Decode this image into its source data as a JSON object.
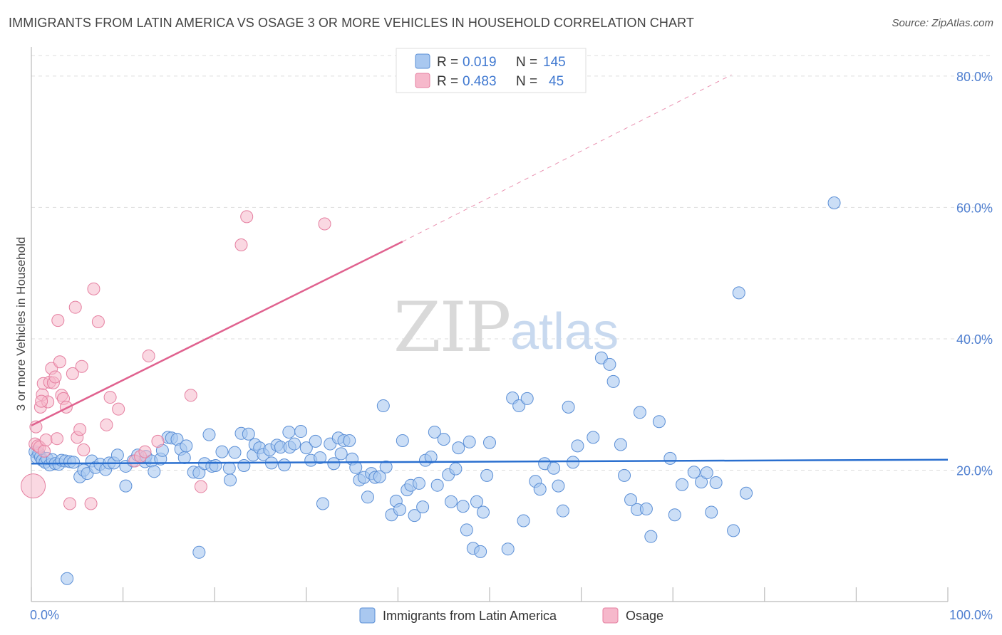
{
  "header": {
    "title": "IMMIGRANTS FROM LATIN AMERICA VS OSAGE 3 OR MORE VEHICLES IN HOUSEHOLD CORRELATION CHART",
    "source": "Source: ZipAtlas.com"
  },
  "watermark": {
    "zip": "ZIP",
    "atlas": "atlas"
  },
  "legend": {
    "rows": [
      {
        "r_label": "R =",
        "r_value": "0.019",
        "n_label": "N =",
        "n_value": "145",
        "color": "#a9c8f0"
      },
      {
        "r_label": "R =",
        "r_value": "0.483",
        "n_label": "N =",
        "n_value": "45",
        "color": "#f6b8cb"
      }
    ]
  },
  "bottom_legend": [
    {
      "label": "Immigrants from Latin America",
      "color": "#a9c8f0"
    },
    {
      "label": "Osage",
      "color": "#f6b8cb"
    }
  ],
  "colors": {
    "blue_fill": "#a9c8f0",
    "blue_stroke": "#5b8fd6",
    "blue_line": "#2a6fcf",
    "pink_fill": "#f6b8cb",
    "pink_stroke": "#e57fa0",
    "pink_line": "#e0628f",
    "grid": "#dddddd",
    "axis_label": "#4f7fd0"
  },
  "chart_data": {
    "type": "scatter",
    "title": "IMMIGRANTS FROM LATIN AMERICA VS OSAGE 3 OR MORE VEHICLES IN HOUSEHOLD CORRELATION CHART",
    "xlabel": "",
    "ylabel": "3 or more Vehicles in Household",
    "xlim": [
      0,
      100
    ],
    "ylim": [
      0,
      84
    ],
    "x_tick_labels": [
      "0.0%",
      "100.0%"
    ],
    "y_ticks": [
      20,
      40,
      60,
      80
    ],
    "y_tick_labels": [
      "20.0%",
      "40.0%",
      "60.0%",
      "80.0%"
    ],
    "grid": true,
    "legend_position": "top-center",
    "series": [
      {
        "name": "Immigrants from Latin America",
        "r": 0.019,
        "n": 145,
        "trend": {
          "x": [
            0,
            100
          ],
          "y": [
            21.0,
            21.6
          ],
          "extended": false
        },
        "points": [
          [
            0.4,
            22.8
          ],
          [
            0.6,
            21.9
          ],
          [
            0.8,
            22.6
          ],
          [
            1.0,
            22.0
          ],
          [
            1.2,
            21.5
          ],
          [
            1.5,
            21.2
          ],
          [
            1.7,
            21.8
          ],
          [
            2.0,
            20.8
          ],
          [
            2.3,
            21.6
          ],
          [
            2.6,
            21.0
          ],
          [
            3.0,
            20.9
          ],
          [
            3.3,
            21.5
          ],
          [
            3.7,
            21.4
          ],
          [
            4.2,
            21.3
          ],
          [
            4.6,
            21.2
          ],
          [
            5.3,
            19.0
          ],
          [
            5.7,
            20.0
          ],
          [
            6.1,
            19.5
          ],
          [
            6.6,
            21.4
          ],
          [
            7.0,
            20.4
          ],
          [
            7.5,
            20.9
          ],
          [
            8.1,
            20.1
          ],
          [
            8.5,
            21.1
          ],
          [
            9.0,
            21.1
          ],
          [
            9.4,
            22.3
          ],
          [
            10.3,
            20.6
          ],
          [
            10.3,
            17.6
          ],
          [
            11.1,
            21.4
          ],
          [
            11.6,
            22.3
          ],
          [
            12.4,
            21.3
          ],
          [
            12.5,
            22.1
          ],
          [
            13.1,
            21.4
          ],
          [
            13.4,
            19.8
          ],
          [
            14.1,
            21.7
          ],
          [
            14.3,
            23.0
          ],
          [
            14.9,
            25.0
          ],
          [
            15.3,
            24.9
          ],
          [
            15.9,
            24.7
          ],
          [
            16.3,
            23.2
          ],
          [
            16.7,
            21.9
          ],
          [
            16.9,
            23.7
          ],
          [
            17.7,
            19.7
          ],
          [
            18.3,
            19.6
          ],
          [
            18.3,
            7.5
          ],
          [
            18.9,
            21.0
          ],
          [
            19.4,
            25.4
          ],
          [
            19.7,
            20.6
          ],
          [
            20.1,
            20.7
          ],
          [
            20.8,
            22.8
          ],
          [
            21.6,
            20.3
          ],
          [
            21.7,
            18.5
          ],
          [
            22.2,
            22.7
          ],
          [
            22.9,
            25.6
          ],
          [
            23.2,
            20.7
          ],
          [
            23.7,
            25.5
          ],
          [
            24.2,
            22.3
          ],
          [
            24.4,
            23.9
          ],
          [
            24.9,
            23.4
          ],
          [
            25.3,
            22.4
          ],
          [
            26.0,
            23.1
          ],
          [
            26.2,
            21.1
          ],
          [
            26.8,
            23.8
          ],
          [
            27.2,
            23.5
          ],
          [
            27.6,
            20.8
          ],
          [
            28.1,
            25.8
          ],
          [
            28.2,
            23.5
          ],
          [
            28.7,
            24.0
          ],
          [
            29.4,
            25.9
          ],
          [
            30.0,
            23.4
          ],
          [
            30.5,
            21.5
          ],
          [
            31.0,
            24.4
          ],
          [
            31.5,
            21.9
          ],
          [
            31.8,
            14.9
          ],
          [
            32.6,
            24.0
          ],
          [
            33.0,
            21.0
          ],
          [
            33.5,
            24.9
          ],
          [
            33.8,
            22.5
          ],
          [
            34.1,
            24.5
          ],
          [
            34.7,
            24.5
          ],
          [
            35.0,
            21.7
          ],
          [
            35.4,
            20.4
          ],
          [
            35.8,
            18.5
          ],
          [
            36.3,
            18.9
          ],
          [
            36.7,
            15.9
          ],
          [
            37.1,
            19.5
          ],
          [
            37.5,
            18.9
          ],
          [
            38.0,
            19.0
          ],
          [
            38.4,
            29.8
          ],
          [
            38.7,
            20.5
          ],
          [
            39.3,
            13.2
          ],
          [
            39.8,
            15.3
          ],
          [
            40.2,
            14.0
          ],
          [
            40.5,
            24.5
          ],
          [
            41.0,
            17.0
          ],
          [
            41.4,
            17.7
          ],
          [
            41.8,
            13.1
          ],
          [
            42.3,
            18.0
          ],
          [
            42.7,
            14.4
          ],
          [
            43.0,
            21.5
          ],
          [
            43.6,
            22.0
          ],
          [
            44.0,
            25.8
          ],
          [
            44.3,
            17.7
          ],
          [
            45.0,
            24.7
          ],
          [
            45.5,
            19.3
          ],
          [
            45.8,
            15.2
          ],
          [
            46.3,
            20.2
          ],
          [
            46.6,
            23.4
          ],
          [
            47.1,
            14.5
          ],
          [
            47.5,
            10.9
          ],
          [
            47.8,
            24.3
          ],
          [
            48.2,
            8.1
          ],
          [
            48.6,
            15.2
          ],
          [
            49.0,
            7.6
          ],
          [
            49.3,
            13.6
          ],
          [
            49.7,
            19.2
          ],
          [
            50.0,
            24.2
          ],
          [
            52.0,
            8.0
          ],
          [
            52.5,
            31.0
          ],
          [
            53.2,
            29.8
          ],
          [
            53.7,
            12.3
          ],
          [
            54.1,
            30.9
          ],
          [
            55.0,
            18.3
          ],
          [
            55.5,
            17.1
          ],
          [
            56.0,
            21.0
          ],
          [
            57.0,
            20.3
          ],
          [
            57.5,
            17.6
          ],
          [
            58.0,
            13.8
          ],
          [
            58.6,
            29.6
          ],
          [
            59.1,
            21.2
          ],
          [
            59.6,
            23.7
          ],
          [
            61.3,
            25.0
          ],
          [
            62.2,
            37.1
          ],
          [
            63.1,
            36.1
          ],
          [
            63.5,
            33.5
          ],
          [
            64.3,
            23.9
          ],
          [
            64.7,
            19.2
          ],
          [
            65.4,
            15.5
          ],
          [
            66.1,
            14.0
          ],
          [
            66.4,
            28.8
          ],
          [
            67.1,
            14.1
          ],
          [
            67.6,
            9.9
          ],
          [
            68.5,
            27.4
          ],
          [
            69.7,
            21.8
          ],
          [
            70.2,
            13.2
          ],
          [
            71.0,
            17.8
          ],
          [
            72.3,
            19.7
          ],
          [
            73.1,
            18.2
          ],
          [
            73.7,
            19.6
          ],
          [
            74.2,
            13.6
          ],
          [
            74.7,
            18.1
          ],
          [
            76.6,
            10.8
          ],
          [
            77.2,
            47.0
          ],
          [
            78.0,
            16.5
          ],
          [
            87.6,
            60.7
          ],
          [
            3.9,
            3.5
          ]
        ]
      },
      {
        "name": "Osage",
        "r": 0.483,
        "n": 45,
        "trend": {
          "x": [
            0,
            40.5
          ],
          "y": [
            26.8,
            54.8
          ],
          "extended_to": [
            76.4,
            80.2
          ]
        },
        "points": [
          [
            0.2,
            17.6
          ],
          [
            0.4,
            24.0
          ],
          [
            0.5,
            26.6
          ],
          [
            0.7,
            23.7
          ],
          [
            0.9,
            23.5
          ],
          [
            1.0,
            29.6
          ],
          [
            1.2,
            31.5
          ],
          [
            1.3,
            33.2
          ],
          [
            1.4,
            22.9
          ],
          [
            1.6,
            24.6
          ],
          [
            1.8,
            30.4
          ],
          [
            2.0,
            33.4
          ],
          [
            2.2,
            35.5
          ],
          [
            2.4,
            33.3
          ],
          [
            2.6,
            34.2
          ],
          [
            2.8,
            24.8
          ],
          [
            3.1,
            36.5
          ],
          [
            3.3,
            31.4
          ],
          [
            3.5,
            30.9
          ],
          [
            3.8,
            29.6
          ],
          [
            4.2,
            14.9
          ],
          [
            4.5,
            34.7
          ],
          [
            4.8,
            44.8
          ],
          [
            5.0,
            25.0
          ],
          [
            5.3,
            26.2
          ],
          [
            5.5,
            35.8
          ],
          [
            5.7,
            23.1
          ],
          [
            6.5,
            14.9
          ],
          [
            6.8,
            47.6
          ],
          [
            7.3,
            42.6
          ],
          [
            8.2,
            26.9
          ],
          [
            8.6,
            31.1
          ],
          [
            9.5,
            29.3
          ],
          [
            11.3,
            21.4
          ],
          [
            11.9,
            22.1
          ],
          [
            12.4,
            22.8
          ],
          [
            12.8,
            37.4
          ],
          [
            13.8,
            24.4
          ],
          [
            17.4,
            31.4
          ],
          [
            18.5,
            17.5
          ],
          [
            22.9,
            54.3
          ],
          [
            23.5,
            58.6
          ],
          [
            32.0,
            57.5
          ],
          [
            1.1,
            30.5
          ],
          [
            2.9,
            42.8
          ]
        ]
      }
    ]
  }
}
